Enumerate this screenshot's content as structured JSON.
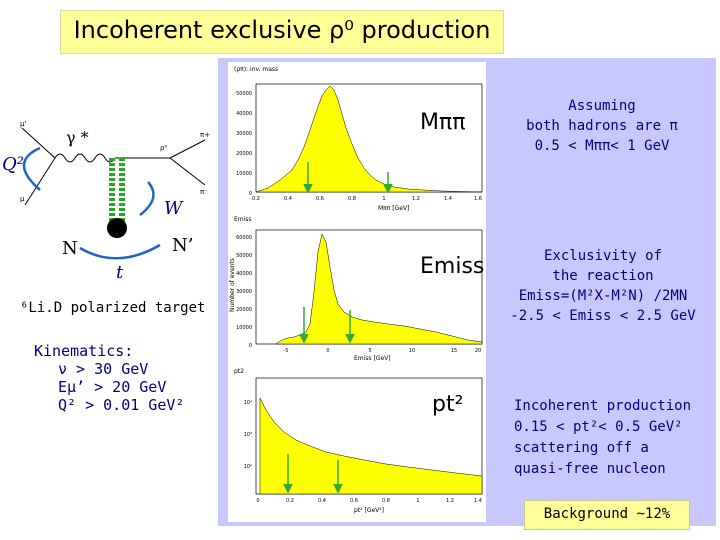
{
  "title": "Incoherent exclusive ρ⁰ production",
  "diagram": {
    "gamma_star": "γ *",
    "q2": "Q²",
    "w": "W",
    "n": "N",
    "n_prime": "N’",
    "t": "t",
    "mu": "μ",
    "mu_prime": "μ'",
    "rho0": "ρ⁰",
    "pi_plus": "π+",
    "pi_minus": "π⁻"
  },
  "target": "⁶Li.D polarized target",
  "kinematics": {
    "heading": "Kinematics:",
    "lines": [
      "ν > 30 GeV",
      "Eμ’ > 20 GeV",
      "Q² > 0.01 GeV²"
    ]
  },
  "plots": [
    {
      "label": "Mππ",
      "title": "(ρπ): inv. mass",
      "xlabel": "Mππ [GeV]",
      "ylabel": "",
      "y_ticks": [
        "0",
        "10000",
        "20000",
        "30000",
        "40000",
        "50000"
      ],
      "x_ticks": [
        "0.2",
        "0.4",
        "0.6",
        "0.8",
        "1",
        "1.2",
        "1.4",
        "1.6"
      ]
    },
    {
      "label": "Emiss",
      "title": "Emiss",
      "xlabel": "Emiss [GeV]",
      "ylabel": "Number of events",
      "y_ticks": [
        "0",
        "10000",
        "20000",
        "30000",
        "40000",
        "50000",
        "60000"
      ],
      "x_ticks": [
        "-5",
        "0",
        "5",
        "10",
        "15",
        "20"
      ]
    },
    {
      "label": "pt²",
      "title": "pt2",
      "xlabel": "pt² [GeV²]",
      "ylabel": "",
      "y_ticks": [
        "10²",
        "10³",
        "10⁴"
      ],
      "x_ticks": [
        "0",
        "0.2",
        "0.4",
        "0.6",
        "0.8",
        "1",
        "1.2",
        "1.4"
      ]
    }
  ],
  "cuts": {
    "mass": {
      "lines": [
        "Assuming",
        "both hadrons are π",
        "0.5 < Mππ< 1 GeV"
      ]
    },
    "emiss": {
      "lines": [
        "Exclusivity of",
        "the reaction",
        "Emiss=(M²X-M²N) /2MN",
        "-2.5 < Emiss < 2.5 GeV"
      ]
    },
    "pt": {
      "lines": [
        "Incoherent production",
        "0.15 < pt²< 0.5 GeV²",
        "scattering off a",
        "quasi-free nucleon"
      ]
    }
  },
  "background": "Background ~12%",
  "colors": {
    "title_bg": "#ffff99",
    "panel_bg": "#c8c8ff",
    "navy_text": "#000080",
    "histogram_fill": "#ffff00",
    "cut_arrow": "#33aa33"
  }
}
